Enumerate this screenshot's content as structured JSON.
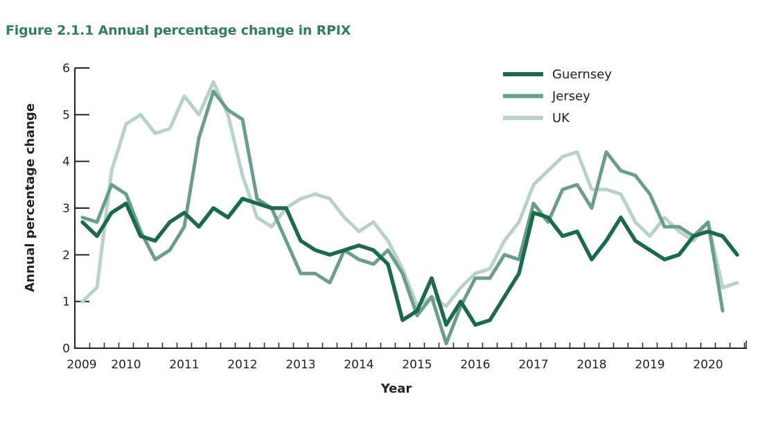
{
  "chart_data": {
    "type": "line",
    "title": "Figure 2.1.1 Annual percentage change in RPIX",
    "xlabel": "Year",
    "ylabel": "Annual percentage change",
    "xlim": [
      2009,
      2020.75
    ],
    "ylim": [
      0,
      6
    ],
    "y_ticks": [
      0,
      1,
      2,
      3,
      4,
      5,
      6
    ],
    "x_tick_labels": [
      "2009",
      "2010",
      "2011",
      "2012",
      "2013",
      "2014",
      "2015",
      "2016",
      "2017",
      "2018",
      "2019",
      "2020"
    ],
    "grid": false,
    "legend_position": "top-right",
    "x": [
      2009.25,
      2009.5,
      2009.75,
      2010,
      2010.25,
      2010.5,
      2010.75,
      2011,
      2011.25,
      2011.5,
      2011.75,
      2012,
      2012.25,
      2012.5,
      2012.75,
      2013,
      2013.25,
      2013.5,
      2013.75,
      2014,
      2014.25,
      2014.5,
      2014.75,
      2015,
      2015.25,
      2015.5,
      2015.75,
      2016,
      2016.25,
      2016.5,
      2016.75,
      2017,
      2017.25,
      2017.5,
      2017.75,
      2018,
      2018.25,
      2018.5,
      2018.75,
      2019,
      2019.25,
      2019.5,
      2019.75,
      2020,
      2020.25,
      2020.5
    ],
    "series": [
      {
        "name": "Guernsey",
        "color": "#1b6b4b",
        "values": [
          2.7,
          2.4,
          2.9,
          3.1,
          2.4,
          2.3,
          2.7,
          2.9,
          2.6,
          3.0,
          2.8,
          3.2,
          3.1,
          3.0,
          3.0,
          2.3,
          2.1,
          2.0,
          2.1,
          2.2,
          2.1,
          1.8,
          0.6,
          0.8,
          1.5,
          0.5,
          1.0,
          0.5,
          0.6,
          1.1,
          1.6,
          2.9,
          2.8,
          2.4,
          2.5,
          1.9,
          2.3,
          2.8,
          2.3,
          2.1,
          1.9,
          2.0,
          2.4,
          2.5,
          2.4,
          2.0
        ]
      },
      {
        "name": "Jersey",
        "color": "#6b9e89",
        "values": [
          2.8,
          2.7,
          3.5,
          3.3,
          2.5,
          1.9,
          2.1,
          2.6,
          4.5,
          5.5,
          5.1,
          4.9,
          3.2,
          3.0,
          2.3,
          1.6,
          1.6,
          1.4,
          2.1,
          1.9,
          1.8,
          2.1,
          1.6,
          0.7,
          1.1,
          0.1,
          0.9,
          1.5,
          1.5,
          2.0,
          1.9,
          3.1,
          2.7,
          3.4,
          3.5,
          3.0,
          4.2,
          3.8,
          3.7,
          3.3,
          2.6,
          2.6,
          2.4,
          2.7,
          0.8,
          null
        ]
      },
      {
        "name": "UK",
        "color": "#b7d2c6",
        "values": [
          1.0,
          1.3,
          3.8,
          4.8,
          5.0,
          4.6,
          4.7,
          5.4,
          5.0,
          5.7,
          5.0,
          3.7,
          2.8,
          2.6,
          3.0,
          3.2,
          3.3,
          3.2,
          2.8,
          2.5,
          2.7,
          2.3,
          1.7,
          0.9,
          1.1,
          0.9,
          1.3,
          1.6,
          1.7,
          2.3,
          2.7,
          3.5,
          3.8,
          4.1,
          4.2,
          3.4,
          3.4,
          3.3,
          2.7,
          2.4,
          2.8,
          2.5,
          2.3,
          2.7,
          1.3,
          1.4
        ]
      }
    ]
  }
}
